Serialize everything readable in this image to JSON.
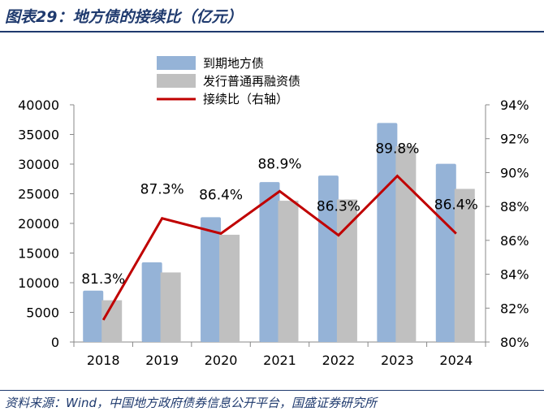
{
  "title": "图表29：地方债的接续比（亿元）",
  "source": "资料来源：Wind，中国地方政府债券信息公开平台，国盛证券研究所",
  "chart_data": {
    "type": "bar",
    "categories": [
      "2018",
      "2019",
      "2020",
      "2021",
      "2022",
      "2023",
      "2024"
    ],
    "series": [
      {
        "name": "到期地方债",
        "type": "bar",
        "axis": "left",
        "color": "#95b3d7",
        "values": [
          8660,
          13440,
          21040,
          26970,
          28060,
          36940,
          30050
        ]
      },
      {
        "name": "发行普通再融资债",
        "type": "bar",
        "axis": "left",
        "color": "#c0c0c0",
        "values": [
          7040,
          11730,
          18090,
          23820,
          24040,
          33020,
          25820
        ]
      },
      {
        "name": "接续比（右轴）",
        "type": "line",
        "axis": "right",
        "color": "#c00000",
        "values": [
          81.3,
          87.3,
          86.4,
          88.9,
          86.3,
          89.8,
          86.4
        ],
        "labels": [
          "81.3%",
          "87.3%",
          "86.4%",
          "88.9%",
          "86.3%",
          "89.8%",
          "86.4%"
        ]
      }
    ],
    "ylim": [
      0,
      40000
    ],
    "yticks": [
      "0",
      "5000",
      "10000",
      "15000",
      "20000",
      "25000",
      "30000",
      "35000",
      "40000"
    ],
    "y2lim": [
      80,
      94
    ],
    "y2ticks": [
      "80%",
      "82%",
      "84%",
      "86%",
      "88%",
      "90%",
      "92%",
      "94%"
    ],
    "legend": "top-center",
    "grid": false
  }
}
